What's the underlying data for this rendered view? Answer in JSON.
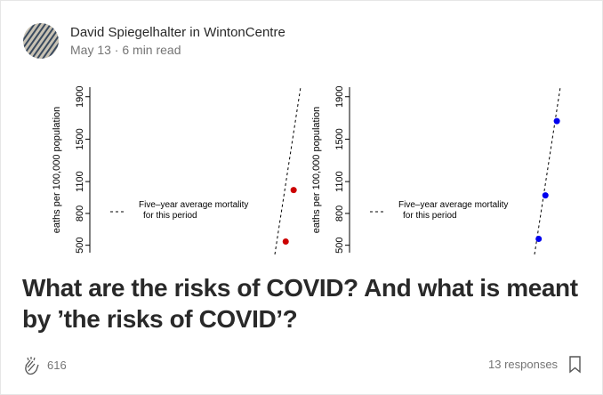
{
  "author": {
    "name": "David Spiegelhalter in WintonCentre",
    "meta": "May 13 · 6 min read"
  },
  "chart_data": [
    {
      "type": "scatter",
      "y_label": "eaths per 100,000 population",
      "ylim": [
        430,
        1990
      ],
      "yticks": [
        500,
        800,
        1100,
        1500,
        1900
      ],
      "legend": [
        "Five–year average mortality",
        "for this period"
      ],
      "series": [
        {
          "color": "#cc0000",
          "values": [
            1020,
            535
          ]
        }
      ]
    },
    {
      "type": "scatter",
      "y_label": "eaths per 100,000 population",
      "ylim": [
        430,
        1990
      ],
      "yticks": [
        500,
        800,
        1100,
        1500,
        1900
      ],
      "legend": [
        "Five–year average mortality",
        "for this period"
      ],
      "series": [
        {
          "color": "#0000ee",
          "values": [
            1670,
            970,
            560
          ]
        }
      ]
    }
  ],
  "title": "What are the risks of COVID? And what is meant by ’the risks of COVID’?",
  "footer": {
    "claps": "616",
    "responses": "13 responses"
  }
}
